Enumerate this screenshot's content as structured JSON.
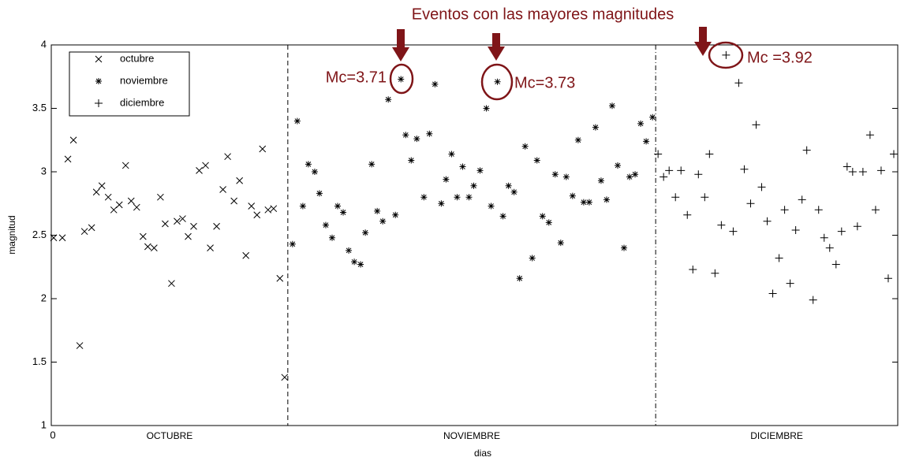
{
  "chart_data": {
    "type": "scatter",
    "x_label": "dias",
    "y_label": "magnitud",
    "xlim": [
      0,
      107
    ],
    "xticks": [
      0
    ],
    "ylim": [
      1,
      4
    ],
    "yticks": [
      1,
      1.5,
      2,
      2.5,
      3,
      3.5,
      4
    ],
    "legend": "upper left",
    "dividers": [
      29.9,
      76.4
    ],
    "month_labels": [
      "OCTUBRE",
      "NOVIEMBRE",
      "DICIEMBRE"
    ],
    "annotation_title": "Eventos con las mayores magnitudes",
    "annotations": [
      "Mc=3.71",
      "Mc=3.73",
      "Mc =3.92"
    ],
    "series": [
      {
        "name": "octubre",
        "marker": "x",
        "color": "#000000",
        "x": [
          0.3,
          1.4,
          2.1,
          2.8,
          3.6,
          4.2,
          5.1,
          5.7,
          6.4,
          7.2,
          7.9,
          8.6,
          9.4,
          10.1,
          10.8,
          11.6,
          12.2,
          13.0,
          13.8,
          14.4,
          15.2,
          15.9,
          16.6,
          17.3,
          18.0,
          18.7,
          19.5,
          20.1,
          20.9,
          21.7,
          22.3,
          23.1,
          23.8,
          24.6,
          25.3,
          26.0,
          26.7,
          27.4,
          28.1,
          28.9,
          29.5
        ],
        "values": [
          2.48,
          2.48,
          3.1,
          3.25,
          1.63,
          2.53,
          2.56,
          2.84,
          2.89,
          2.8,
          2.7,
          2.74,
          3.05,
          2.77,
          2.72,
          2.49,
          2.41,
          2.4,
          2.8,
          2.59,
          2.12,
          2.61,
          2.63,
          2.49,
          2.57,
          3.01,
          3.05,
          2.4,
          2.57,
          2.86,
          3.12,
          2.77,
          2.93,
          2.34,
          2.73,
          2.66,
          3.18,
          2.7,
          2.71,
          2.16,
          1.38
        ]
      },
      {
        "name": "noviembre",
        "marker": "asterisk",
        "color": "#000000",
        "x": [
          30.5,
          31.1,
          31.8,
          32.5,
          33.3,
          33.9,
          34.7,
          35.5,
          36.2,
          36.9,
          37.6,
          38.3,
          39.1,
          39.7,
          40.5,
          41.2,
          41.9,
          42.6,
          43.5,
          44.2,
          44.8,
          45.5,
          46.2,
          47.1,
          47.8,
          48.5,
          49.3,
          49.9,
          50.6,
          51.3,
          52.0,
          52.8,
          53.4,
          54.2,
          55.0,
          55.6,
          56.4,
          57.1,
          57.8,
          58.5,
          59.2,
          59.9,
          60.8,
          61.4,
          62.1,
          62.9,
          63.7,
          64.4,
          65.1,
          65.9,
          66.6,
          67.3,
          68.0,
          68.8,
          69.5,
          70.2,
          70.9,
          71.6,
          72.4,
          73.1,
          73.8,
          74.5,
          75.2,
          76.0
        ],
        "values": [
          2.43,
          3.4,
          2.73,
          3.06,
          3.0,
          2.83,
          2.58,
          2.48,
          2.73,
          2.68,
          2.38,
          2.29,
          2.27,
          2.52,
          3.06,
          2.69,
          2.61,
          3.57,
          2.66,
          3.73,
          3.29,
          3.09,
          3.26,
          2.8,
          3.3,
          3.69,
          2.75,
          2.94,
          3.14,
          2.8,
          3.04,
          2.8,
          2.89,
          3.01,
          3.5,
          2.73,
          3.71,
          2.65,
          2.89,
          2.84,
          2.16,
          3.2,
          2.32,
          3.09,
          2.65,
          2.6,
          2.98,
          2.44,
          2.96,
          2.81,
          3.25,
          2.76,
          2.76,
          3.35,
          2.93,
          2.78,
          3.52,
          3.05,
          2.4,
          2.96,
          2.98,
          3.38,
          3.24,
          3.43
        ]
      },
      {
        "name": "diciembre",
        "marker": "plus",
        "color": "#000000",
        "x": [
          76.7,
          77.4,
          78.1,
          78.9,
          79.6,
          80.4,
          81.1,
          81.8,
          82.6,
          83.2,
          83.9,
          84.7,
          85.3,
          86.2,
          86.9,
          87.6,
          88.4,
          89.1,
          89.8,
          90.5,
          91.2,
          92.0,
          92.7,
          93.4,
          94.1,
          94.9,
          95.5,
          96.3,
          97.0,
          97.7,
          98.4,
          99.2,
          99.9,
          100.6,
          101.3,
          101.9,
          102.6,
          103.5,
          104.2,
          104.9,
          105.8,
          106.5
        ],
        "values": [
          3.14,
          2.96,
          3.01,
          2.8,
          3.01,
          2.66,
          2.23,
          2.98,
          2.8,
          3.14,
          2.2,
          2.58,
          3.92,
          2.53,
          3.7,
          3.02,
          2.75,
          3.37,
          2.88,
          2.61,
          2.04,
          2.32,
          2.7,
          2.12,
          2.54,
          2.78,
          3.17,
          1.99,
          2.7,
          2.48,
          2.4,
          2.27,
          2.53,
          3.04,
          3.0,
          2.57,
          3.0,
          3.29,
          2.7,
          3.01,
          2.16,
          3.14
        ]
      }
    ]
  }
}
